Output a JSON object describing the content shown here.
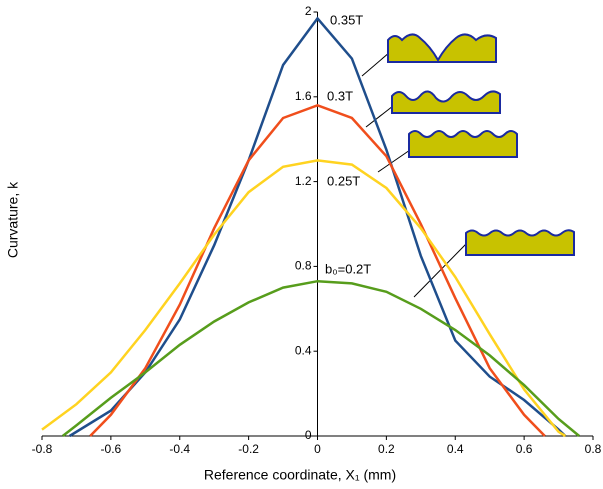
{
  "chart_data": {
    "type": "line",
    "x_label": "Reference coordinate, X₁ (mm)",
    "y_label": "Curvature, k",
    "xlim": [
      -0.8,
      0.8
    ],
    "xticks": [
      -0.8,
      -0.6,
      -0.4,
      -0.2,
      0,
      0.2,
      0.4,
      0.6,
      0.8
    ],
    "ylim": [
      0,
      2
    ],
    "yticks": [
      0,
      0.4,
      0.8,
      1.2,
      1.6,
      2
    ],
    "series": [
      {
        "name": "0.35T",
        "color": "#1f4e8c",
        "x": [
          -0.72,
          -0.6,
          -0.5,
          -0.4,
          -0.3,
          -0.2,
          -0.1,
          0,
          0.1,
          0.2,
          0.3,
          0.4,
          0.5,
          0.6,
          0.7,
          0.72
        ],
        "values": [
          0,
          0.12,
          0.3,
          0.55,
          0.9,
          1.3,
          1.75,
          1.97,
          1.78,
          1.35,
          0.85,
          0.45,
          0.28,
          0.17,
          0.03,
          0
        ]
      },
      {
        "name": "0.3T",
        "color": "#f04e1c",
        "x": [
          -0.66,
          -0.6,
          -0.5,
          -0.4,
          -0.3,
          -0.2,
          -0.1,
          0,
          0.1,
          0.2,
          0.3,
          0.4,
          0.5,
          0.6,
          0.66
        ],
        "values": [
          0,
          0.1,
          0.32,
          0.62,
          0.98,
          1.3,
          1.5,
          1.56,
          1.5,
          1.32,
          1.0,
          0.65,
          0.32,
          0.1,
          0
        ]
      },
      {
        "name": "0.25T",
        "color": "#ffd320",
        "x": [
          -0.8,
          -0.7,
          -0.6,
          -0.5,
          -0.4,
          -0.3,
          -0.2,
          -0.1,
          0,
          0.1,
          0.2,
          0.3,
          0.4,
          0.5,
          0.6,
          0.7,
          0.72
        ],
        "values": [
          0.03,
          0.15,
          0.3,
          0.5,
          0.72,
          0.95,
          1.15,
          1.27,
          1.3,
          1.28,
          1.17,
          0.98,
          0.75,
          0.48,
          0.22,
          0.02,
          0
        ]
      },
      {
        "name": "b₀=0.2T",
        "color": "#579d1c",
        "x": [
          -0.74,
          -0.7,
          -0.6,
          -0.5,
          -0.4,
          -0.3,
          -0.2,
          -0.1,
          0,
          0.1,
          0.2,
          0.3,
          0.4,
          0.5,
          0.6,
          0.7,
          0.76
        ],
        "values": [
          0,
          0.05,
          0.18,
          0.3,
          0.43,
          0.54,
          0.63,
          0.7,
          0.73,
          0.72,
          0.68,
          0.6,
          0.5,
          0.38,
          0.24,
          0.08,
          0
        ]
      }
    ]
  }
}
